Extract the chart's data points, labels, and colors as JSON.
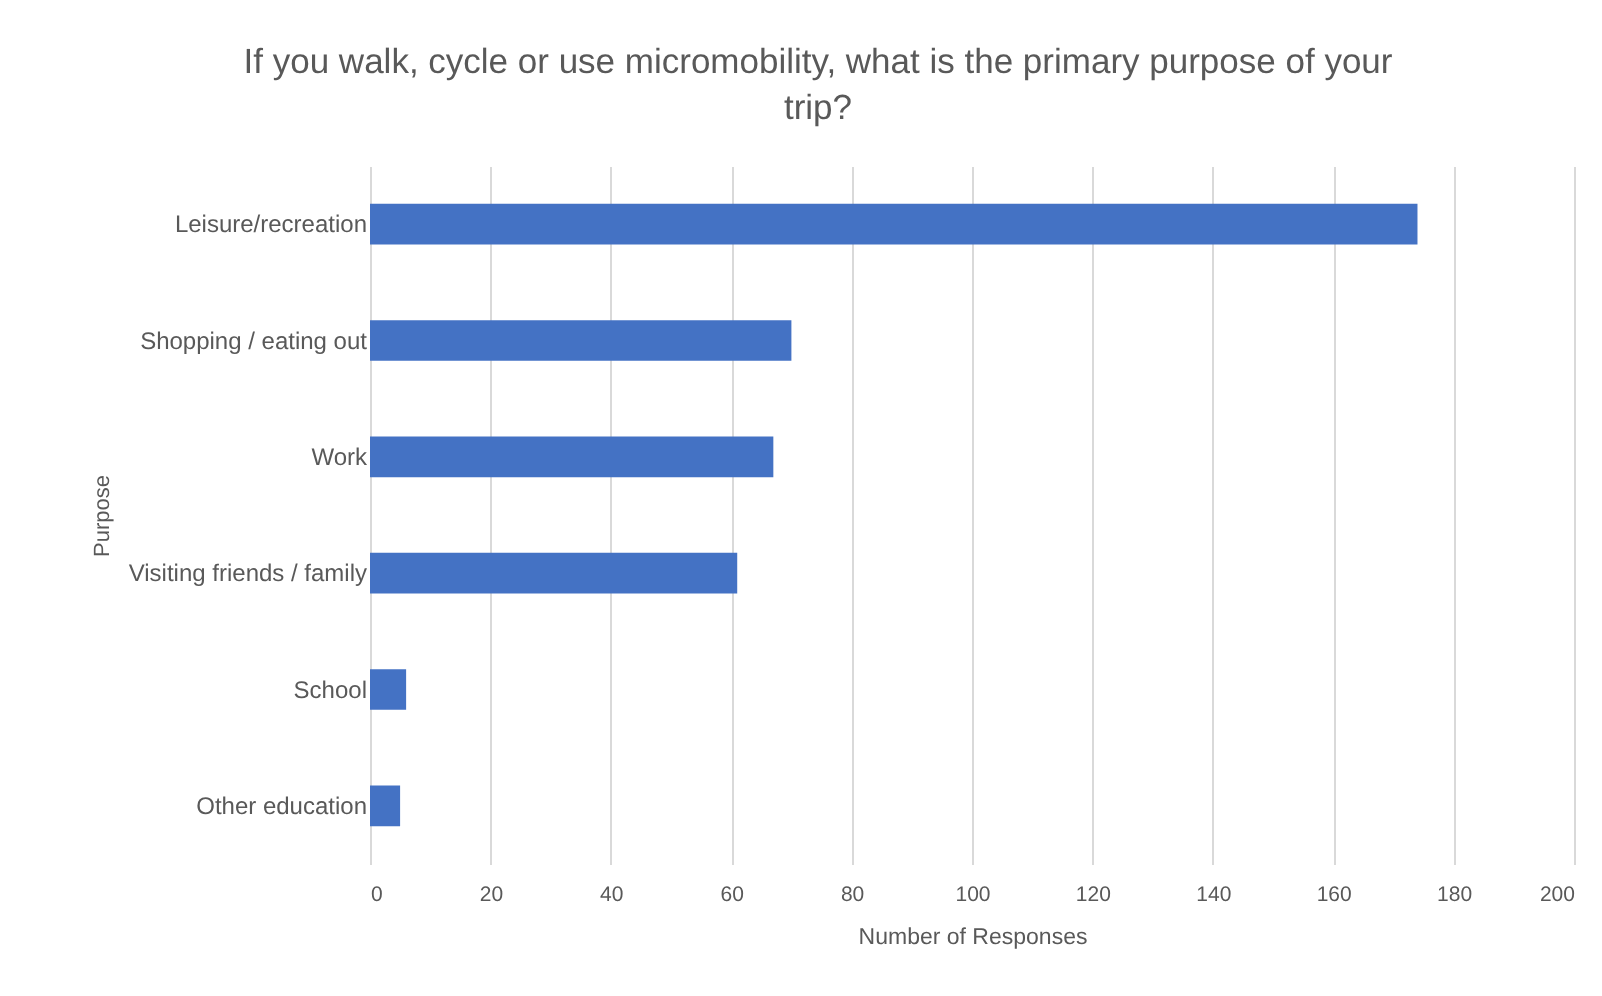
{
  "chart_data": {
    "type": "bar",
    "orientation": "horizontal",
    "title": "If you walk, cycle or use micromobility, what is the primary purpose of your trip?",
    "xlabel": "Number of Responses",
    "ylabel": "Purpose",
    "categories": [
      "Leisure/recreation",
      "Shopping / eating out",
      "Work",
      "Visiting friends / family",
      "School",
      "Other education"
    ],
    "values": [
      174,
      70,
      67,
      61,
      6,
      5
    ],
    "color": "#4472c4",
    "xlim": [
      0,
      200
    ],
    "xticks": [
      0,
      20,
      40,
      60,
      80,
      100,
      120,
      140,
      160,
      180,
      200
    ],
    "grid": "x"
  }
}
